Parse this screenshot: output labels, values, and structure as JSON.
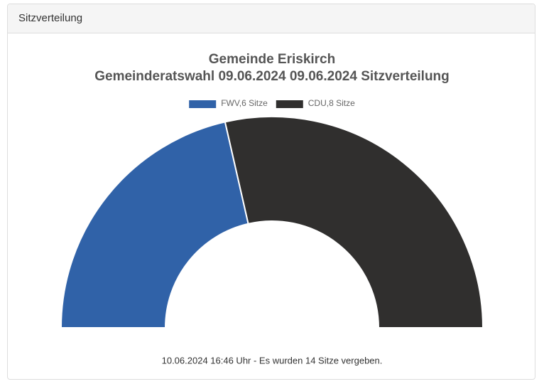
{
  "panel": {
    "heading": "Sitzverteilung"
  },
  "chart_data": {
    "type": "half-doughnut",
    "title": [
      "Gemeinde Eriskirch",
      "Gemeinderatswahl 09.06.2024 09.06.2024 Sitzverteilung"
    ],
    "categories": [
      "FWV,6 Sitze",
      "CDU,8 Sitze"
    ],
    "values": [
      6,
      8
    ],
    "colors": [
      "#3062a8",
      "#302f2e"
    ]
  },
  "footer": "10.06.2024 16:46 Uhr - Es wurden 14 Sitze vergeben."
}
